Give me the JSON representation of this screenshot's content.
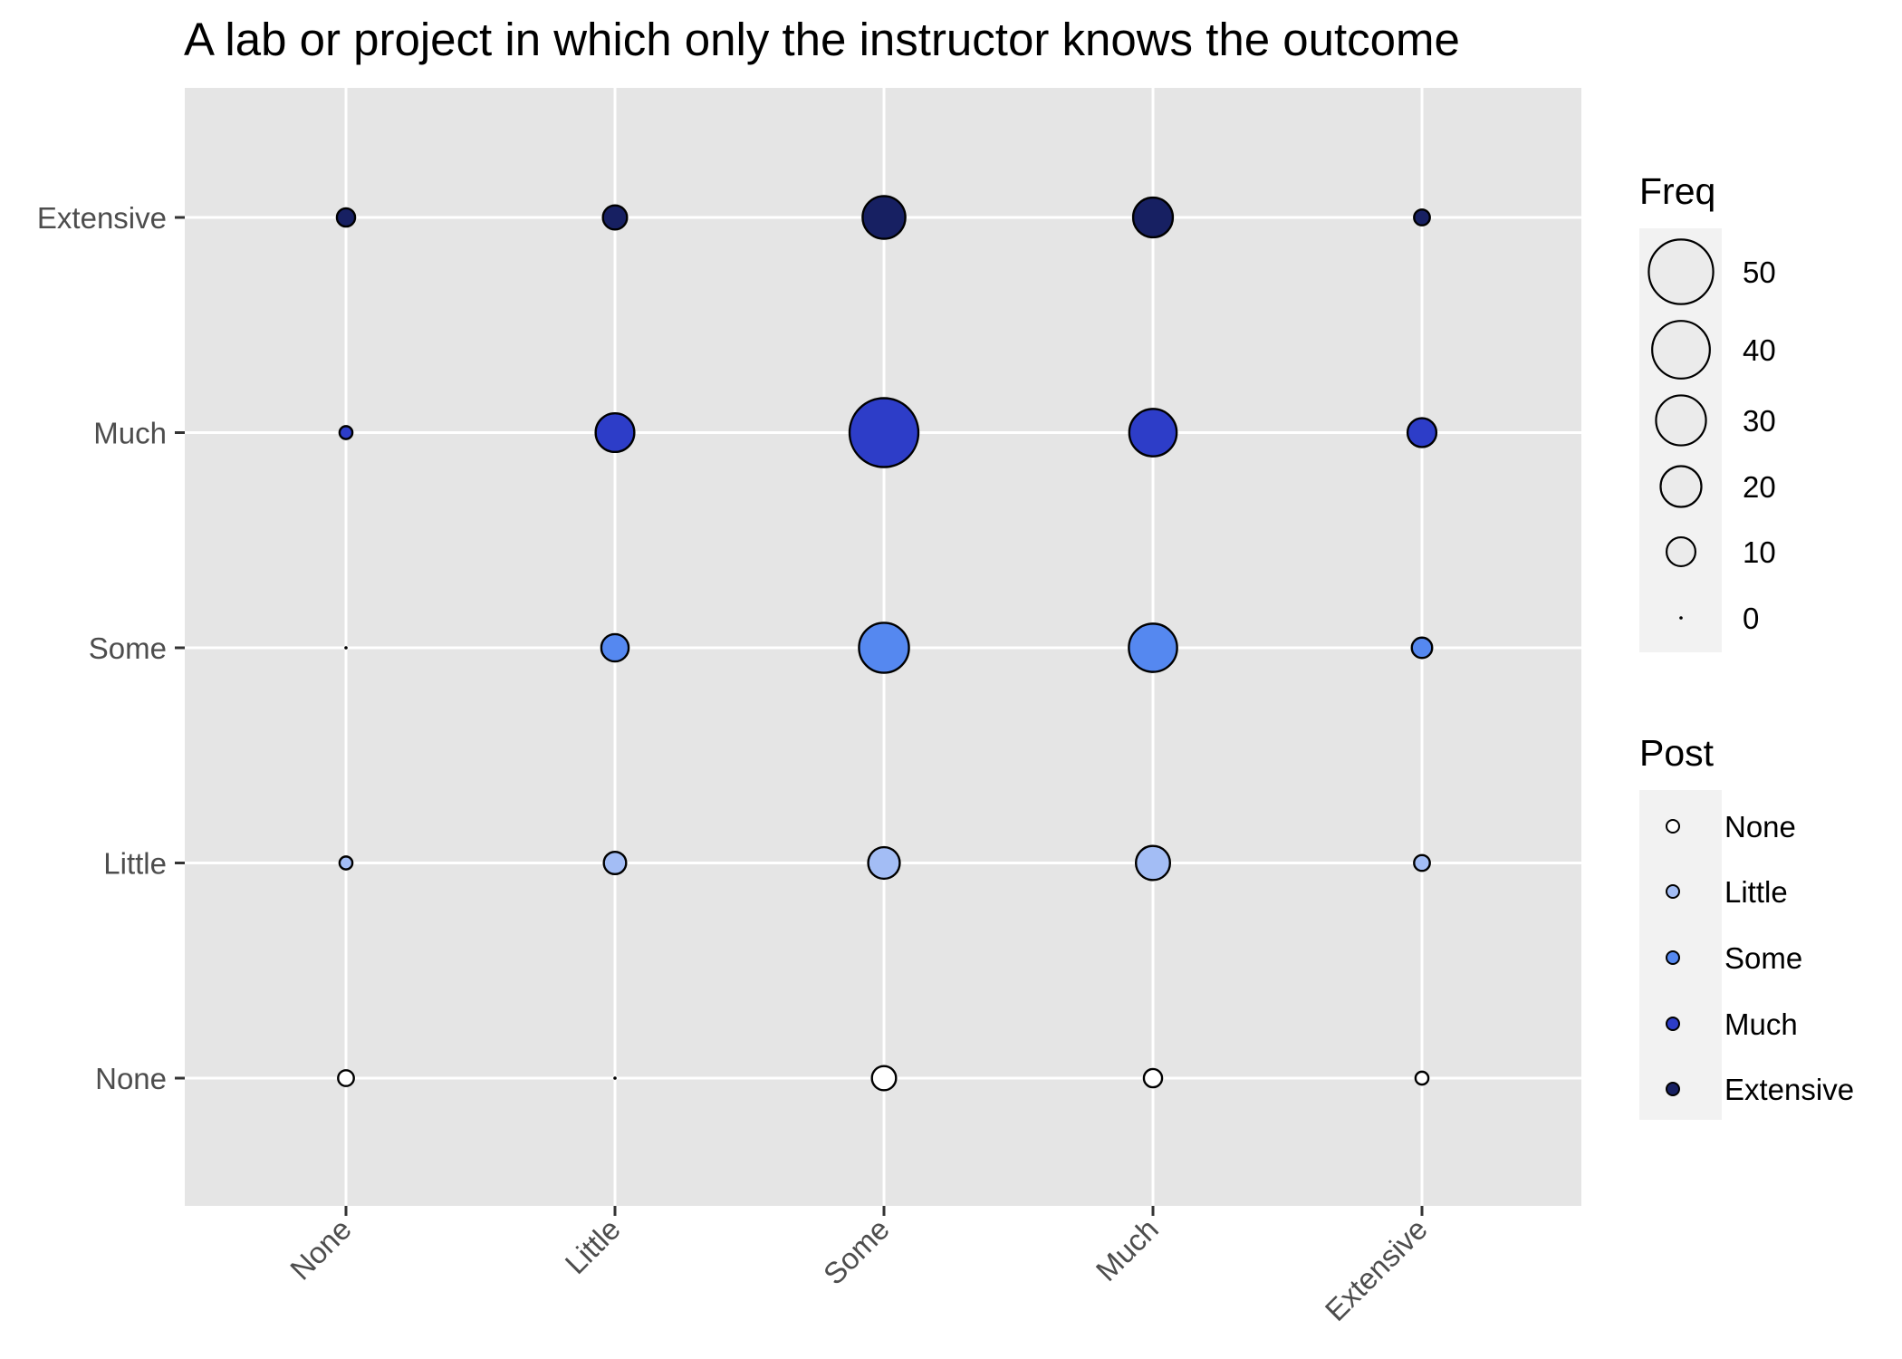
{
  "chart_data": {
    "type": "scatter",
    "title": "A lab or project in which only the instructor knows the outcome",
    "xlabel": "",
    "ylabel": "",
    "categories": [
      "None",
      "Little",
      "Some",
      "Much",
      "Extensive"
    ],
    "x_categories": [
      "None",
      "Little",
      "Some",
      "Much",
      "Extensive"
    ],
    "y_categories": [
      "None",
      "Little",
      "Some",
      "Much",
      "Extensive"
    ],
    "grid": true,
    "legend_position": "right",
    "size_legend": {
      "title": "Freq",
      "values": [
        50,
        40,
        30,
        20,
        10,
        0
      ]
    },
    "color_legend": {
      "title": "Post",
      "entries": [
        {
          "label": "None",
          "color": "#ffffff"
        },
        {
          "label": "Little",
          "color": "#a3bdf5"
        },
        {
          "label": "Some",
          "color": "#5588f0"
        },
        {
          "label": "Much",
          "color": "#2d3dc8"
        },
        {
          "label": "Extensive",
          "color": "#172062"
        }
      ]
    },
    "series": [
      {
        "name": "None",
        "color": "#ffffff",
        "points": [
          {
            "x": "None",
            "y": "None",
            "freq": 3
          },
          {
            "x": "Little",
            "y": "None",
            "freq": 0
          },
          {
            "x": "Some",
            "y": "None",
            "freq": 7
          },
          {
            "x": "Much",
            "y": "None",
            "freq": 4
          },
          {
            "x": "Extensive",
            "y": "None",
            "freq": 2
          }
        ]
      },
      {
        "name": "Little",
        "color": "#a3bdf5",
        "points": [
          {
            "x": "None",
            "y": "Little",
            "freq": 2
          },
          {
            "x": "Little",
            "y": "Little",
            "freq": 6
          },
          {
            "x": "Some",
            "y": "Little",
            "freq": 12
          },
          {
            "x": "Much",
            "y": "Little",
            "freq": 14
          },
          {
            "x": "Extensive",
            "y": "Little",
            "freq": 3
          }
        ]
      },
      {
        "name": "Some",
        "color": "#5588f0",
        "points": [
          {
            "x": "None",
            "y": "Some",
            "freq": 0
          },
          {
            "x": "Little",
            "y": "Some",
            "freq": 9
          },
          {
            "x": "Some",
            "y": "Some",
            "freq": 30
          },
          {
            "x": "Much",
            "y": "Some",
            "freq": 28
          },
          {
            "x": "Extensive",
            "y": "Some",
            "freq": 5
          }
        ]
      },
      {
        "name": "Much",
        "color": "#2d3dc8",
        "points": [
          {
            "x": "None",
            "y": "Much",
            "freq": 2
          },
          {
            "x": "Little",
            "y": "Much",
            "freq": 18
          },
          {
            "x": "Some",
            "y": "Much",
            "freq": 57
          },
          {
            "x": "Much",
            "y": "Much",
            "freq": 27
          },
          {
            "x": "Extensive",
            "y": "Much",
            "freq": 10
          }
        ]
      },
      {
        "name": "Extensive",
        "color": "#172062",
        "points": [
          {
            "x": "None",
            "y": "Extensive",
            "freq": 4
          },
          {
            "x": "Little",
            "y": "Extensive",
            "freq": 7
          },
          {
            "x": "Some",
            "y": "Extensive",
            "freq": 22
          },
          {
            "x": "Much",
            "y": "Extensive",
            "freq": 19
          },
          {
            "x": "Extensive",
            "y": "Extensive",
            "freq": 3
          }
        ]
      }
    ],
    "colors": {
      "panel": "#e5e5e5",
      "grid": "#ffffff",
      "outline": "#000000"
    }
  }
}
